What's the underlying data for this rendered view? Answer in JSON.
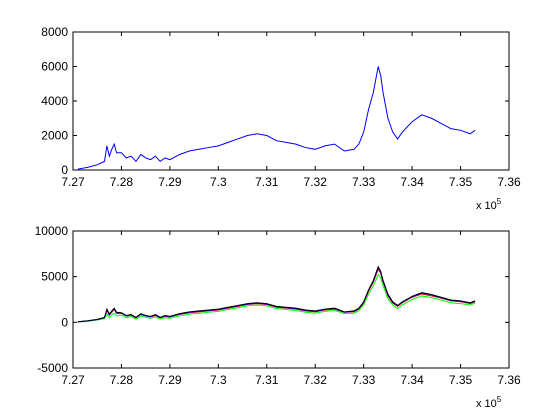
{
  "chart_data": [
    {
      "type": "line",
      "xlim": [
        727000,
        736000
      ],
      "ylim": [
        0,
        8000
      ],
      "xticks": [
        727000,
        728000,
        729000,
        730000,
        731000,
        732000,
        733000,
        734000,
        735000,
        736000
      ],
      "xtick_labels": [
        "7.27",
        "7.28",
        "7.29",
        "7.3",
        "7.31",
        "7.32",
        "7.33",
        "7.34",
        "7.35",
        "7.36"
      ],
      "yticks": [
        0,
        2000,
        4000,
        6000,
        8000
      ],
      "ytick_labels": [
        "0",
        "2000",
        "4000",
        "6000",
        "8000"
      ],
      "x_multiplier_label": "x 10",
      "x_multiplier_exp": "5",
      "grid": false,
      "series": [
        {
          "color": "#0000ff",
          "x": [
            727100,
            727300,
            727500,
            727650,
            727700,
            727750,
            727800,
            727850,
            727900,
            728000,
            728100,
            728200,
            728300,
            728400,
            728500,
            728600,
            728700,
            728800,
            728900,
            729000,
            729200,
            729400,
            729600,
            729800,
            730000,
            730200,
            730400,
            730600,
            730800,
            731000,
            731200,
            731400,
            731600,
            731800,
            732000,
            732200,
            732400,
            732600,
            732800,
            732900,
            733000,
            733100,
            733200,
            733300,
            733350,
            733400,
            733500,
            733600,
            733700,
            733800,
            733900,
            734000,
            734200,
            734400,
            734600,
            734800,
            735000,
            735200,
            735300
          ],
          "y": [
            50,
            150,
            300,
            500,
            1400,
            800,
            1200,
            1500,
            1000,
            1000,
            700,
            800,
            500,
            900,
            700,
            600,
            800,
            500,
            700,
            600,
            900,
            1100,
            1200,
            1300,
            1400,
            1600,
            1800,
            2000,
            2100,
            2000,
            1700,
            1600,
            1500,
            1300,
            1200,
            1400,
            1500,
            1100,
            1200,
            1500,
            2200,
            3500,
            4500,
            6000,
            5500,
            4500,
            3000,
            2200,
            1800,
            2200,
            2500,
            2800,
            3200,
            3000,
            2700,
            2400,
            2300,
            2100,
            2300
          ]
        }
      ]
    },
    {
      "type": "line",
      "xlim": [
        727000,
        736000
      ],
      "ylim": [
        -5000,
        10000
      ],
      "xticks": [
        727000,
        728000,
        729000,
        730000,
        731000,
        732000,
        733000,
        734000,
        735000,
        736000
      ],
      "xtick_labels": [
        "7.27",
        "7.28",
        "7.29",
        "7.3",
        "7.31",
        "7.32",
        "7.33",
        "7.34",
        "7.35",
        "7.36"
      ],
      "yticks": [
        -5000,
        0,
        5000,
        10000
      ],
      "ytick_labels": [
        "-5000",
        "0",
        "5000",
        "10000"
      ],
      "x_multiplier_label": "x 10",
      "x_multiplier_exp": "5",
      "grid": false,
      "series": [
        {
          "color": "#ff0000",
          "x": [
            727100,
            727300,
            727500,
            727650,
            727700,
            727750,
            727800,
            727850,
            727900,
            728000,
            728100,
            728200,
            728300,
            728400,
            728500,
            728600,
            728700,
            728800,
            728900,
            729000,
            729200,
            729400,
            729600,
            729800,
            730000,
            730200,
            730400,
            730600,
            730800,
            731000,
            731200,
            731400,
            731600,
            731800,
            732000,
            732200,
            732400,
            732600,
            732800,
            732900,
            733000,
            733100,
            733200,
            733300,
            733350,
            733400,
            733500,
            733600,
            733700,
            733800,
            733900,
            734000,
            734200,
            734400,
            734600,
            734800,
            735000,
            735200,
            735300
          ],
          "y": [
            50,
            150,
            300,
            500,
            1300,
            800,
            1100,
            1400,
            1000,
            1000,
            700,
            800,
            500,
            850,
            700,
            600,
            750,
            500,
            650,
            600,
            850,
            1050,
            1150,
            1250,
            1350,
            1550,
            1750,
            1950,
            2050,
            1950,
            1650,
            1550,
            1450,
            1250,
            1150,
            1350,
            1450,
            1100,
            1150,
            1450,
            2100,
            3400,
            4400,
            5800,
            5400,
            4400,
            2900,
            2100,
            1750,
            2150,
            2450,
            2750,
            3100,
            2900,
            2650,
            2350,
            2250,
            2050,
            2250
          ]
        },
        {
          "color": "#00ff00",
          "x": [
            727100,
            727300,
            727500,
            727650,
            727700,
            727750,
            727800,
            727850,
            727900,
            728000,
            728100,
            728200,
            728300,
            728400,
            728500,
            728600,
            728700,
            728800,
            728900,
            729000,
            729200,
            729400,
            729600,
            729800,
            730000,
            730200,
            730400,
            730600,
            730800,
            731000,
            731200,
            731400,
            731600,
            731800,
            732000,
            732200,
            732400,
            732600,
            732800,
            732900,
            733000,
            733100,
            733200,
            733300,
            733350,
            733400,
            733500,
            733600,
            733700,
            733800,
            733900,
            734000,
            734200,
            734400,
            734600,
            734800,
            735000,
            735200,
            735300
          ],
          "y": [
            40,
            120,
            250,
            400,
            900,
            500,
            800,
            1000,
            700,
            800,
            500,
            650,
            350,
            700,
            550,
            450,
            600,
            350,
            500,
            450,
            700,
            900,
            1000,
            1100,
            1200,
            1400,
            1600,
            1800,
            1900,
            1800,
            1500,
            1400,
            1300,
            1100,
            1000,
            1200,
            1300,
            950,
            1000,
            1300,
            1900,
            3100,
            4000,
            5200,
            4900,
            4000,
            2600,
            1900,
            1500,
            1900,
            2200,
            2500,
            2900,
            2700,
            2450,
            2150,
            2050,
            1900,
            2100
          ]
        },
        {
          "color": "#0000ff",
          "x": [
            727100,
            727300,
            727500,
            727650,
            727700,
            727750,
            727800,
            727850,
            727900,
            728000,
            728100,
            728200,
            728300,
            728400,
            728500,
            728600,
            728700,
            728800,
            728900,
            729000,
            729200,
            729400,
            729600,
            729800,
            730000,
            730200,
            730400,
            730600,
            730800,
            731000,
            731200,
            731400,
            731600,
            731800,
            732000,
            732200,
            732400,
            732600,
            732800,
            732900,
            733000,
            733100,
            733200,
            733300,
            733350,
            733400,
            733500,
            733600,
            733700,
            733800,
            733900,
            734000,
            734200,
            734400,
            734600,
            734800,
            735000,
            735200,
            735300
          ],
          "y": [
            50,
            150,
            300,
            500,
            1400,
            800,
            1200,
            1500,
            1000,
            1000,
            700,
            800,
            500,
            900,
            700,
            600,
            800,
            500,
            700,
            600,
            900,
            1100,
            1200,
            1300,
            1400,
            1600,
            1800,
            2000,
            2100,
            2000,
            1700,
            1600,
            1500,
            1300,
            1200,
            1400,
            1500,
            1100,
            1200,
            1500,
            2200,
            3500,
            4500,
            6000,
            5500,
            4500,
            3000,
            2200,
            1800,
            2200,
            2500,
            2800,
            3200,
            3000,
            2700,
            2400,
            2300,
            2100,
            2300
          ]
        },
        {
          "color": "#000000",
          "x": [
            727100,
            727300,
            727500,
            727650,
            727700,
            727750,
            727800,
            727850,
            727900,
            728000,
            728100,
            728200,
            728300,
            728400,
            728500,
            728600,
            728700,
            728800,
            728900,
            729000,
            729200,
            729400,
            729600,
            729800,
            730000,
            730200,
            730400,
            730600,
            730800,
            731000,
            731200,
            731400,
            731600,
            731800,
            732000,
            732200,
            732400,
            732600,
            732800,
            732900,
            733000,
            733100,
            733200,
            733300,
            733350,
            733400,
            733500,
            733600,
            733700,
            733800,
            733900,
            734000,
            734200,
            734400,
            734600,
            734800,
            735000,
            735200,
            735300
          ],
          "y": [
            60,
            170,
            330,
            550,
            1450,
            900,
            1250,
            1550,
            1100,
            1050,
            750,
            850,
            550,
            950,
            750,
            650,
            850,
            550,
            750,
            650,
            950,
            1150,
            1250,
            1350,
            1450,
            1650,
            1850,
            2050,
            2150,
            2050,
            1750,
            1650,
            1550,
            1350,
            1250,
            1450,
            1550,
            1150,
            1250,
            1550,
            2250,
            3550,
            4600,
            6100,
            5600,
            4600,
            3100,
            2250,
            1850,
            2250,
            2550,
            2850,
            3250,
            3050,
            2750,
            2450,
            2350,
            2150,
            2350
          ]
        }
      ]
    }
  ]
}
